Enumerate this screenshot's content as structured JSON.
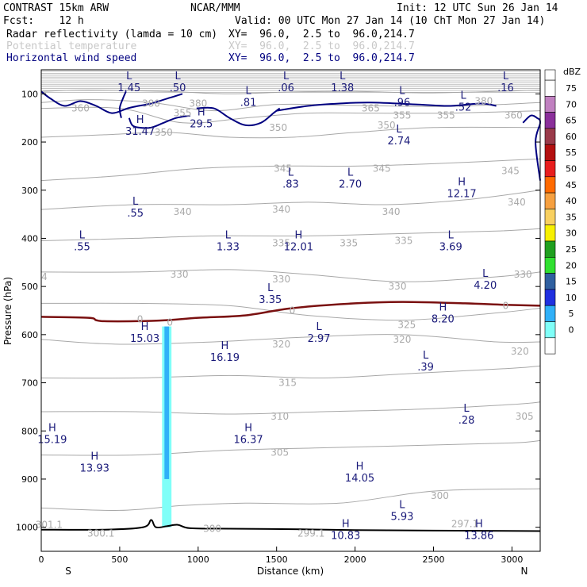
{
  "header": {
    "line1_left": "CONTRAST 15km ARW",
    "line1_mid": "NCAR/MMM",
    "line1_right": "Init: 12 UTC Sun 26 Jan 14",
    "line2_left": "Fcst:    12 h",
    "line2_right": "Valid: 00 UTC Mon 27 Jan 14 (10 ChT Mon 27 Jan 14)",
    "fields": [
      {
        "name": "Radar reflectivity (lamda = 10 cm)",
        "xy": "XY=  96.0,  2.5 to  96.0,214.7",
        "color": "#000000"
      },
      {
        "name": "Potential temperature",
        "xy": "XY=  96.0,  2.5 to  96.0,214.7",
        "color": "#c8c8c8"
      },
      {
        "name": "Horizontal wind speed",
        "xy": "XY=  96.0,  2.5 to  96.0,214.7",
        "color": "#000080"
      }
    ]
  },
  "colorbar": {
    "unit": "dBZ",
    "levels": [
      "75",
      "70",
      "65",
      "60",
      "55",
      "50",
      "45",
      "40",
      "35",
      "30",
      "25",
      "20",
      "15",
      "10",
      "5",
      "0"
    ],
    "colors": [
      "#ffffff",
      "#c080c0",
      "#8a2f9a",
      "#9a3a4a",
      "#b41010",
      "#e81e1e",
      "#ff6a00",
      "#f6a040",
      "#f8d060",
      "#f7f000",
      "#20a020",
      "#30e030",
      "#3060a0",
      "#2030e0",
      "#30b0f8",
      "#80fff8",
      "#ffffff"
    ]
  },
  "chart_data": {
    "type": "vertical cross-section",
    "xlabel": "Distance (km)",
    "ylabel": "Pressure (hPa)",
    "xlim": [
      0,
      3180
    ],
    "ylim": [
      1050,
      50
    ],
    "x_ticks": [
      "0",
      "500",
      "1000",
      "1500",
      "2000",
      "2500",
      "3000"
    ],
    "x_tick_values": [
      0,
      500,
      1000,
      1500,
      2000,
      2500,
      3000
    ],
    "y_ticks": [
      "100",
      "200",
      "300",
      "400",
      "500",
      "600",
      "700",
      "800",
      "900",
      "1000"
    ],
    "y_tick_values": [
      100,
      200,
      300,
      400,
      500,
      600,
      700,
      800,
      900,
      1000
    ],
    "x_end_labels": {
      "left": "S",
      "right": "N"
    },
    "theta_contours": [
      {
        "value": "380",
        "points": [
          [
            0,
            95
          ],
          [
            300,
            92
          ],
          [
            800,
            95
          ],
          [
            1200,
            100
          ],
          [
            1600,
            96
          ],
          [
            2000,
            95
          ],
          [
            2500,
            98
          ],
          [
            3180,
            92
          ]
        ]
      },
      {
        "value": "360",
        "points": [
          [
            0,
            118
          ],
          [
            300,
            112
          ],
          [
            700,
            118
          ],
          [
            1100,
            135
          ],
          [
            1500,
            122
          ],
          [
            2000,
            124
          ],
          [
            2600,
            126
          ],
          [
            3180,
            118
          ]
        ]
      },
      {
        "value": "355",
        "points": [
          [
            0,
            130
          ],
          [
            500,
            130
          ],
          [
            900,
            160
          ],
          [
            1300,
            150
          ],
          [
            1700,
            140
          ],
          [
            2100,
            140
          ],
          [
            2600,
            140
          ],
          [
            3180,
            135
          ]
        ]
      },
      {
        "value": "350",
        "points": [
          [
            0,
            190
          ],
          [
            400,
            185
          ],
          [
            800,
            180
          ],
          [
            1200,
            190
          ],
          [
            1600,
            190
          ],
          [
            2000,
            180
          ],
          [
            2500,
            170
          ],
          [
            3180,
            170
          ]
        ]
      },
      {
        "value": "345",
        "points": [
          [
            0,
            280
          ],
          [
            500,
            270
          ],
          [
            1000,
            255
          ],
          [
            1500,
            250
          ],
          [
            2000,
            250
          ],
          [
            2500,
            245
          ],
          [
            3180,
            235
          ]
        ]
      },
      {
        "value": "340",
        "points": [
          [
            0,
            340
          ],
          [
            600,
            330
          ],
          [
            1200,
            330
          ],
          [
            1700,
            325
          ],
          [
            2200,
            330
          ],
          [
            2700,
            320
          ],
          [
            3180,
            300
          ]
        ]
      },
      {
        "value": "335",
        "points": [
          [
            0,
            405
          ],
          [
            600,
            400
          ],
          [
            1100,
            395
          ],
          [
            1700,
            395
          ],
          [
            2300,
            390
          ],
          [
            2900,
            385
          ],
          [
            3180,
            380
          ]
        ]
      },
      {
        "value": "330",
        "points": [
          [
            0,
            470
          ],
          [
            600,
            470
          ],
          [
            1200,
            465
          ],
          [
            1700,
            475
          ],
          [
            2300,
            490
          ],
          [
            2900,
            480
          ],
          [
            3180,
            470
          ]
        ]
      },
      {
        "value": "325",
        "points": [
          [
            0,
            535
          ],
          [
            600,
            535
          ],
          [
            1200,
            540
          ],
          [
            1700,
            560
          ],
          [
            2300,
            570
          ],
          [
            2900,
            555
          ],
          [
            3180,
            545
          ]
        ]
      },
      {
        "value": "320",
        "points": [
          [
            0,
            610
          ],
          [
            500,
            620
          ],
          [
            1100,
            615
          ],
          [
            1700,
            605
          ],
          [
            2300,
            600
          ],
          [
            2900,
            615
          ],
          [
            3180,
            615
          ]
        ]
      },
      {
        "value": "315",
        "points": [
          [
            0,
            690
          ],
          [
            600,
            690
          ],
          [
            1200,
            685
          ],
          [
            1800,
            690
          ],
          [
            2400,
            680
          ],
          [
            3000,
            670
          ],
          [
            3180,
            665
          ]
        ]
      },
      {
        "value": "310",
        "points": [
          [
            0,
            760
          ],
          [
            600,
            760
          ],
          [
            1200,
            765
          ],
          [
            1800,
            760
          ],
          [
            2400,
            755
          ],
          [
            3000,
            745
          ],
          [
            3180,
            740
          ]
        ]
      },
      {
        "value": "305",
        "points": [
          [
            0,
            850
          ],
          [
            600,
            850
          ],
          [
            1200,
            840
          ],
          [
            1800,
            835
          ],
          [
            2400,
            830
          ],
          [
            3000,
            825
          ],
          [
            3180,
            820
          ]
        ]
      },
      {
        "value": "300",
        "points": [
          [
            0,
            960
          ],
          [
            500,
            965
          ],
          [
            900,
            955
          ],
          [
            1300,
            950
          ],
          [
            1900,
            950
          ],
          [
            2500,
            925
          ],
          [
            3180,
            920
          ]
        ]
      }
    ],
    "theta_zero_line": {
      "value": "0",
      "points": [
        [
          0,
          563
        ],
        [
          300,
          565
        ],
        [
          350,
          570
        ],
        [
          400,
          572
        ],
        [
          600,
          572
        ],
        [
          800,
          570
        ],
        [
          1000,
          565
        ],
        [
          1300,
          560
        ],
        [
          1600,
          545
        ],
        [
          2000,
          535
        ],
        [
          2300,
          532
        ],
        [
          2700,
          535
        ],
        [
          2950,
          538
        ],
        [
          3180,
          540
        ]
      ]
    },
    "wind_contours": [
      {
        "value": "20",
        "points": [
          [
            1500,
            135
          ],
          [
            1700,
            125
          ],
          [
            1900,
            120
          ],
          [
            2100,
            118
          ],
          [
            2400,
            122
          ],
          [
            2600,
            125
          ],
          [
            2800,
            120
          ],
          [
            2900,
            125
          ]
        ]
      }
    ],
    "reflectivity_column": {
      "x_range": [
        770,
        830
      ],
      "p_top": 560,
      "p_bottom": 1000,
      "dbz": "5-15"
    },
    "terrain": [
      [
        0,
        1005
      ],
      [
        400,
        1005
      ],
      [
        650,
        1000
      ],
      [
        700,
        985
      ],
      [
        730,
        1000
      ],
      [
        800,
        998
      ],
      [
        870,
        995
      ],
      [
        950,
        1002
      ],
      [
        1200,
        1003
      ],
      [
        1600,
        1004
      ],
      [
        2000,
        1006
      ],
      [
        2500,
        1007
      ],
      [
        3180,
        1008
      ]
    ],
    "annotations": [
      {
        "type": "L",
        "value": "1.45",
        "x": 560,
        "p": 70
      },
      {
        "type": "L",
        "value": ".50",
        "x": 870,
        "p": 70
      },
      {
        "type": "L",
        "value": ".06",
        "x": 1560,
        "p": 70
      },
      {
        "type": "L",
        "value": "1.38",
        "x": 1920,
        "p": 70
      },
      {
        "type": "L",
        "value": ".81",
        "x": 1320,
        "p": 100
      },
      {
        "type": "L",
        "value": ".96",
        "x": 2300,
        "p": 100
      },
      {
        "type": "L",
        "value": ".52",
        "x": 2690,
        "p": 110
      },
      {
        "type": "L",
        "value": ".16",
        "x": 2960,
        "p": 70
      },
      {
        "type": "H",
        "value": "31.47",
        "x": 630,
        "p": 160
      },
      {
        "type": "H",
        "value": "29.5",
        "x": 1020,
        "p": 145
      },
      {
        "type": "L",
        "value": "2.74",
        "x": 2280,
        "p": 180
      },
      {
        "type": "L",
        "value": ".83",
        "x": 1590,
        "p": 270
      },
      {
        "type": "L",
        "value": "2.70",
        "x": 1970,
        "p": 270
      },
      {
        "type": "H",
        "value": "12.17",
        "x": 2680,
        "p": 290
      },
      {
        "type": "L",
        "value": ".55",
        "x": 600,
        "p": 330
      },
      {
        "type": "L",
        "value": ".55",
        "x": 260,
        "p": 400
      },
      {
        "type": "L",
        "value": "1.33",
        "x": 1190,
        "p": 400
      },
      {
        "type": "H",
        "value": "12.01",
        "x": 1640,
        "p": 400
      },
      {
        "type": "L",
        "value": "3.69",
        "x": 2610,
        "p": 400
      },
      {
        "type": "L",
        "value": "4.20",
        "x": 2830,
        "p": 480
      },
      {
        "type": "L",
        "value": "3.35",
        "x": 1460,
        "p": 510
      },
      {
        "type": "H",
        "value": "8.20",
        "x": 2560,
        "p": 550
      },
      {
        "type": "H",
        "value": "15.03",
        "x": 660,
        "p": 590
      },
      {
        "type": "L",
        "value": "2.97",
        "x": 1770,
        "p": 590
      },
      {
        "type": "H",
        "value": "16.19",
        "x": 1170,
        "p": 630
      },
      {
        "type": "L",
        "value": ".39",
        "x": 2450,
        "p": 650
      },
      {
        "type": "L",
        "value": ".28",
        "x": 2710,
        "p": 760
      },
      {
        "type": "H",
        "value": "15.19",
        "x": 70,
        "p": 800
      },
      {
        "type": "H",
        "value": "16.37",
        "x": 1320,
        "p": 800
      },
      {
        "type": "H",
        "value": "13.93",
        "x": 340,
        "p": 860
      },
      {
        "type": "H",
        "value": "14.05",
        "x": 2030,
        "p": 880
      },
      {
        "type": "L",
        "value": "5.93",
        "x": 2300,
        "p": 960
      },
      {
        "type": "H",
        "value": "10.83",
        "x": 1940,
        "p": 1000
      },
      {
        "type": "H",
        "value": "13.86",
        "x": 2790,
        "p": 1000
      }
    ],
    "theta_labels": [
      {
        "text": "380",
        "x": 700,
        "p": 120
      },
      {
        "text": "380",
        "x": 1000,
        "p": 120
      },
      {
        "text": "360",
        "x": 250,
        "p": 130
      },
      {
        "text": "355",
        "x": 900,
        "p": 140
      },
      {
        "text": "365",
        "x": 2100,
        "p": 130
      },
      {
        "text": "355",
        "x": 2300,
        "p": 145
      },
      {
        "text": "355",
        "x": 2580,
        "p": 145
      },
      {
        "text": "360",
        "x": 3010,
        "p": 145
      },
      {
        "text": "380",
        "x": 2820,
        "p": 115
      },
      {
        "text": "350",
        "x": 780,
        "p": 180
      },
      {
        "text": "350",
        "x": 1510,
        "p": 170
      },
      {
        "text": "350",
        "x": 2200,
        "p": 165
      },
      {
        "text": "345",
        "x": 1540,
        "p": 255
      },
      {
        "text": "345",
        "x": 2170,
        "p": 255
      },
      {
        "text": "345",
        "x": 2990,
        "p": 260
      },
      {
        "text": "340",
        "x": 900,
        "p": 345
      },
      {
        "text": "340",
        "x": 1530,
        "p": 340
      },
      {
        "text": "340",
        "x": 2230,
        "p": 345
      },
      {
        "text": "340",
        "x": 3030,
        "p": 325
      },
      {
        "text": "335",
        "x": 1530,
        "p": 410
      },
      {
        "text": "335",
        "x": 1960,
        "p": 410
      },
      {
        "text": "335",
        "x": 2310,
        "p": 405
      },
      {
        "text": "330",
        "x": 880,
        "p": 475
      },
      {
        "text": "330",
        "x": 1530,
        "p": 485
      },
      {
        "text": "330",
        "x": 2270,
        "p": 500
      },
      {
        "text": "330",
        "x": 3070,
        "p": 475
      },
      {
        "text": "325",
        "x": 2330,
        "p": 580
      },
      {
        "text": "320",
        "x": 1530,
        "p": 620
      },
      {
        "text": "320",
        "x": 2300,
        "p": 610
      },
      {
        "text": "320",
        "x": 3050,
        "p": 635
      },
      {
        "text": "315",
        "x": 1570,
        "p": 700
      },
      {
        "text": "310",
        "x": 1520,
        "p": 770
      },
      {
        "text": "305",
        "x": 1520,
        "p": 845
      },
      {
        "text": "305",
        "x": 3080,
        "p": 770
      },
      {
        "text": "300",
        "x": 2540,
        "p": 935
      },
      {
        "text": "300",
        "x": 1090,
        "p": 1003
      },
      {
        "text": "300.1",
        "x": 380,
        "p": 1013
      },
      {
        "text": "299.1",
        "x": 1720,
        "p": 1013
      },
      {
        "text": "297.1",
        "x": 2700,
        "p": 993
      },
      {
        "text": "301.1",
        "x": 50,
        "p": 995
      },
      {
        "text": "0",
        "x": 630,
        "p": 568
      },
      {
        "text": "0",
        "x": 820,
        "p": 575
      },
      {
        "text": "0",
        "x": 1600,
        "p": 550
      },
      {
        "text": "0",
        "x": 2960,
        "p": 540
      },
      {
        "text": "4",
        "x": 20,
        "p": 480
      }
    ]
  }
}
